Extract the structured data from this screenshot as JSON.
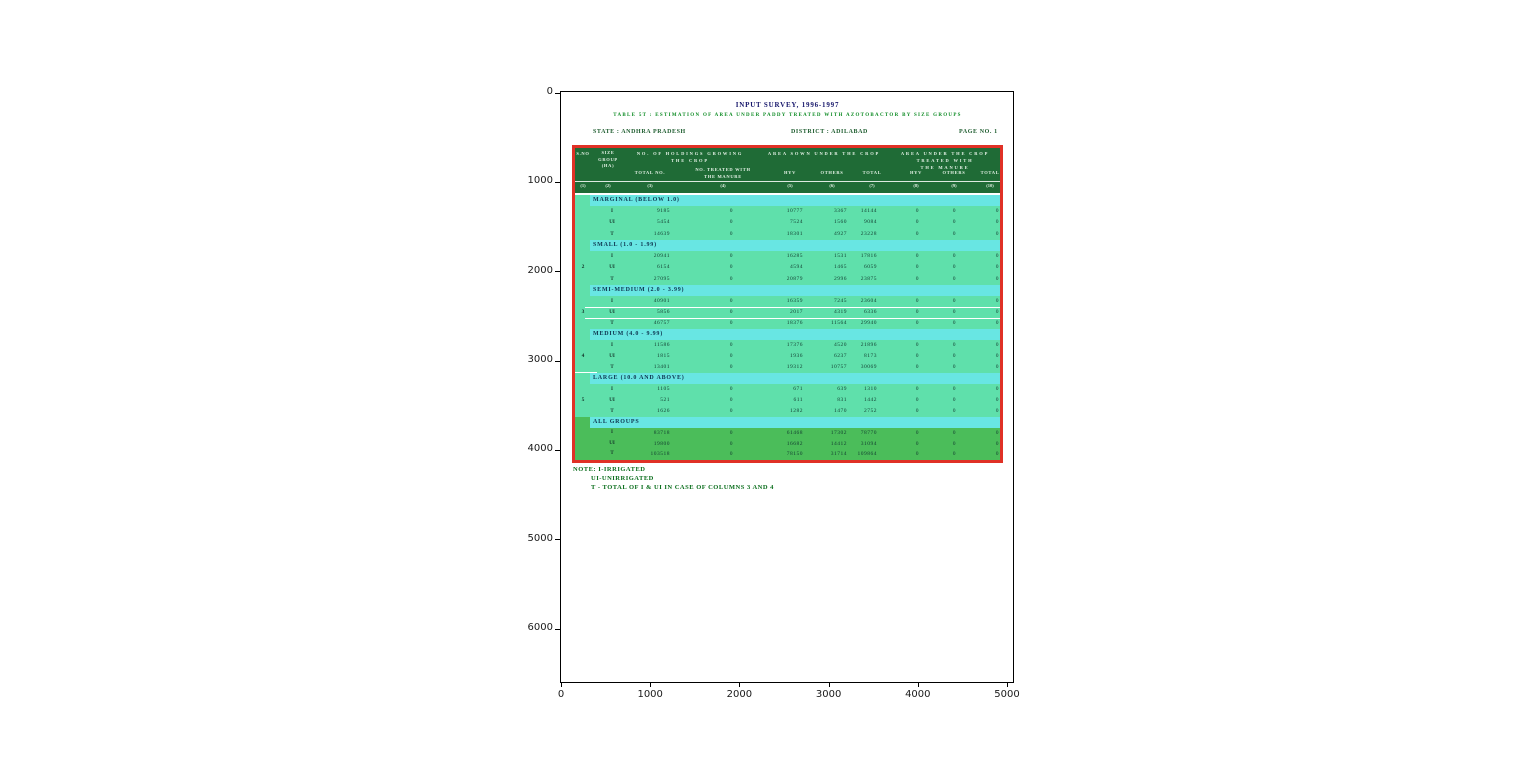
{
  "figure": {
    "x_ticks": [
      "0",
      "1000",
      "2000",
      "3000",
      "4000",
      "5000"
    ],
    "y_ticks": [
      "0",
      "1000",
      "2000",
      "3000",
      "4000",
      "5000",
      "6000"
    ]
  },
  "colors": {
    "table_border": "#e03126",
    "header_bg": "#1f6b36",
    "row_bg": "#5fe0ab",
    "band_bg": "#68e6e3",
    "all_groups_bg": "#4bbd5a",
    "title_text": "#15156a",
    "subtitle_text": "#0b8a22",
    "note_text": "#0a6e1c"
  },
  "scan": {
    "title": "INPUT SURVEY, 1996-1997",
    "subtitle": "TABLE 5T : ESTIMATION OF AREA UNDER PADDY TREATED WITH AZOTOBACTOR BY SIZE GROUPS",
    "state": "STATE : ANDHRA PRADESH",
    "district": "DISTRICT : ADILABAD",
    "page": "PAGE NO. 1",
    "notes": [
      "NOTE: I-IRRIGATED",
      "UI-UNIRRIGATED",
      "T - TOTAL OF I & UI IN CASE OF COLUMNS 3 AND 4"
    ],
    "header": {
      "sl_no": "S.NO",
      "size_group_lines": [
        "SIZE",
        "GROUP",
        "(HA)"
      ],
      "holdings_group_lines": [
        "NO. OF HOLDINGS GROWING",
        "THE CROP"
      ],
      "area_sown_group_lines": [
        "AREA SOWN UNDER THE CROP"
      ],
      "area_treated_group_lines": [
        "AREA UNDER THE CROP TREATED WITH",
        "THE MANURE"
      ],
      "sub_headers": [
        [
          "TOTAL NO."
        ],
        [
          "NO. TREATED WITH",
          "THE MANURE"
        ],
        [
          "HYV"
        ],
        [
          "OTHERS"
        ],
        [
          "TOTAL"
        ],
        [
          "HYV"
        ],
        [
          "OTHERS"
        ],
        [
          "TOTAL"
        ]
      ],
      "col_numbers": [
        "(1)",
        "(2)",
        "(3)",
        "(4)",
        "(5)",
        "(6)",
        "(7)",
        "(8)",
        "(9)",
        "(10)"
      ]
    },
    "groups": [
      {
        "sl_no": "",
        "name": "MARGINAL (BELOW 1.0)",
        "all_groups": false,
        "rows": [
          {
            "label": "I",
            "values": [
              "9185",
              "0",
              "10777",
              "3367",
              "14144",
              "0",
              "0",
              "0"
            ]
          },
          {
            "label": "UI",
            "values": [
              "5454",
              "0",
              "7524",
              "1560",
              "9084",
              "0",
              "0",
              "0"
            ]
          },
          {
            "label": "T",
            "values": [
              "14639",
              "0",
              "18301",
              "4927",
              "23228",
              "0",
              "0",
              "0"
            ]
          }
        ]
      },
      {
        "sl_no": "2",
        "name": "SMALL (1.0 - 1.99)",
        "all_groups": false,
        "rows": [
          {
            "label": "I",
            "values": [
              "20941",
              "0",
              "16285",
              "1531",
              "17816",
              "0",
              "0",
              "0"
            ]
          },
          {
            "label": "UI",
            "values": [
              "6154",
              "0",
              "4594",
              "1465",
              "6059",
              "0",
              "0",
              "0"
            ]
          },
          {
            "label": "T",
            "values": [
              "27095",
              "0",
              "20879",
              "2996",
              "23875",
              "0",
              "0",
              "0"
            ]
          }
        ]
      },
      {
        "sl_no": "3",
        "name": "SEMI-MEDIUM (2.0 - 3.99)",
        "all_groups": false,
        "rows": [
          {
            "label": "I",
            "values": [
              "40901",
              "0",
              "16359",
              "7245",
              "23604",
              "0",
              "0",
              "0"
            ]
          },
          {
            "label": "UI",
            "values": [
              "5856",
              "0",
              "2017",
              "4319",
              "6336",
              "0",
              "0",
              "0"
            ]
          },
          {
            "label": "T",
            "values": [
              "46757",
              "0",
              "18376",
              "11564",
              "29940",
              "0",
              "0",
              "0"
            ]
          }
        ]
      },
      {
        "sl_no": "4",
        "name": "MEDIUM (4.0 - 9.99)",
        "all_groups": false,
        "rows": [
          {
            "label": "I",
            "values": [
              "11586",
              "0",
              "17376",
              "4520",
              "21896",
              "0",
              "0",
              "0"
            ]
          },
          {
            "label": "UI",
            "values": [
              "1815",
              "0",
              "1936",
              "6237",
              "8173",
              "0",
              "0",
              "0"
            ]
          },
          {
            "label": "T",
            "values": [
              "13401",
              "0",
              "19312",
              "10757",
              "30069",
              "0",
              "0",
              "0"
            ]
          }
        ]
      },
      {
        "sl_no": "5",
        "name": "LARGE (10.0 AND ABOVE)",
        "all_groups": false,
        "rows": [
          {
            "label": "I",
            "values": [
              "1105",
              "0",
              "671",
              "639",
              "1310",
              "0",
              "0",
              "0"
            ]
          },
          {
            "label": "UI",
            "values": [
              "521",
              "0",
              "611",
              "831",
              "1442",
              "0",
              "0",
              "0"
            ]
          },
          {
            "label": "T",
            "values": [
              "1626",
              "0",
              "1282",
              "1470",
              "2752",
              "0",
              "0",
              "0"
            ]
          }
        ]
      },
      {
        "sl_no": "",
        "name": "ALL GROUPS",
        "all_groups": true,
        "rows": [
          {
            "label": "I",
            "values": [
              "83718",
              "0",
              "61468",
              "17302",
              "78770",
              "0",
              "0",
              "0"
            ]
          },
          {
            "label": "UI",
            "values": [
              "19800",
              "0",
              "16682",
              "14412",
              "31094",
              "0",
              "0",
              "0"
            ]
          },
          {
            "label": "T",
            "values": [
              "103518",
              "0",
              "78150",
              "31714",
              "109864",
              "0",
              "0",
              "0"
            ]
          }
        ]
      }
    ]
  }
}
